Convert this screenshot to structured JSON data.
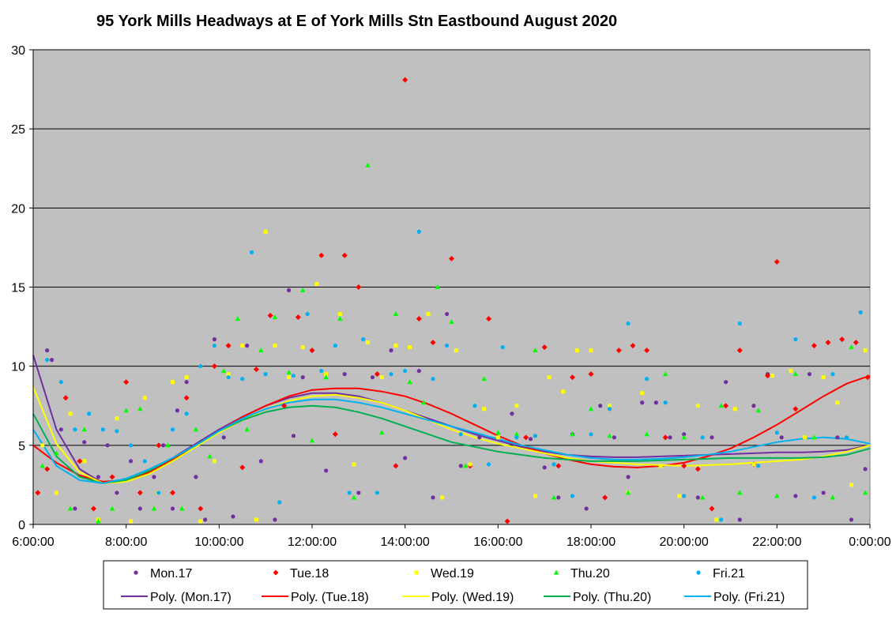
{
  "chart_data": {
    "type": "scatter",
    "title": "95 York Mills Headways  at E of York Mills Stn Eastbound  August  2020",
    "xlabel": "",
    "ylabel": "",
    "xlim": [
      6,
      24
    ],
    "ylim": [
      0,
      30
    ],
    "x_ticks": [
      "6:00:00",
      "8:00:00",
      "10:00:00",
      "12:00:00",
      "14:00:00",
      "16:00:00",
      "18:00:00",
      "20:00:00",
      "22:00:00",
      "0:00:00"
    ],
    "y_ticks": [
      "0",
      "5",
      "10",
      "15",
      "20",
      "25",
      "30"
    ],
    "grid": true,
    "legend_position": "bottom",
    "series": [
      {
        "name": "Mon.17",
        "color": "#7030A0",
        "marker": "circle",
        "x": [
          6.3,
          6.4,
          6.6,
          6.9,
          7.1,
          7.4,
          7.6,
          7.8,
          8.1,
          8.3,
          8.6,
          8.8,
          9.0,
          9.1,
          9.3,
          9.5,
          9.7,
          9.9,
          10.1,
          10.3,
          10.6,
          10.9,
          11.2,
          11.5,
          11.6,
          11.8,
          12.0,
          12.3,
          12.7,
          13.0,
          13.3,
          13.7,
          14.0,
          14.3,
          14.6,
          14.9,
          15.2,
          15.6,
          16.0,
          16.3,
          16.7,
          17.0,
          17.3,
          17.6,
          17.9,
          18.2,
          18.5,
          18.8,
          19.1,
          19.4,
          19.7,
          20.0,
          20.3,
          20.6,
          20.9,
          21.2,
          21.5,
          21.8,
          22.1,
          22.4,
          22.7,
          23.0,
          23.3,
          23.6,
          23.9
        ],
        "y": [
          11,
          10.4,
          6.0,
          1.0,
          5.2,
          3.0,
          5.0,
          2.0,
          4.0,
          1.0,
          3.0,
          5.0,
          1.0,
          7.2,
          9.0,
          3.0,
          0.3,
          11.7,
          5.5,
          0.5,
          11.3,
          4.0,
          0.3,
          14.8,
          5.6,
          9.3,
          11,
          3.4,
          9.5,
          2.0,
          9.3,
          11.0,
          4.2,
          9.7,
          1.7,
          13.3,
          3.7,
          5.5,
          5.5,
          7.0,
          5.4,
          3.6,
          1.7,
          5.7,
          1.0,
          7.5,
          5.5,
          3.0,
          7.7,
          7.7,
          5.5,
          5.7,
          1.7,
          5.5,
          9.0,
          0.3,
          7.5,
          9.5,
          5.5,
          1.8,
          9.5,
          2.0,
          5.5,
          0.3,
          3.5
        ]
      },
      {
        "name": "Tue.18",
        "color": "#FF0000",
        "marker": "diamond",
        "x": [
          6.1,
          6.3,
          6.7,
          7.0,
          7.3,
          7.7,
          8.0,
          8.3,
          8.7,
          9.0,
          9.3,
          9.6,
          9.9,
          10.2,
          10.5,
          10.8,
          11.1,
          11.4,
          11.7,
          12.0,
          12.2,
          12.5,
          12.7,
          13.0,
          13.4,
          13.8,
          14.0,
          14.3,
          14.6,
          15.0,
          15.4,
          15.8,
          16.2,
          16.6,
          17.0,
          17.3,
          17.6,
          18.0,
          18.3,
          18.6,
          18.9,
          19.2,
          19.6,
          20.0,
          20.3,
          20.6,
          20.9,
          21.2,
          21.5,
          21.8,
          22.0,
          22.4,
          22.8,
          23.1,
          23.4,
          23.7,
          23.95
        ],
        "y": [
          2.0,
          3.5,
          8.0,
          4.0,
          1.0,
          3.0,
          9.0,
          2.0,
          5.0,
          2.0,
          8.0,
          1.0,
          10.0,
          11.3,
          3.6,
          9.8,
          13.2,
          7.5,
          13.1,
          11.0,
          17.0,
          5.7,
          17.0,
          15.0,
          9.5,
          3.7,
          28.1,
          13.0,
          11.5,
          16.8,
          3.7,
          13.0,
          0.2,
          5.5,
          11.2,
          3.7,
          9.3,
          9.5,
          1.7,
          11.0,
          11.3,
          11.0,
          5.5,
          3.7,
          3.5,
          1.0,
          7.5,
          11.0,
          3.8,
          9.4,
          16.6,
          7.3,
          11.3,
          11.5,
          11.7,
          11.5,
          9.3
        ]
      },
      {
        "name": "Wed.19",
        "color": "#FFFF00",
        "marker": "square",
        "x": [
          6.2,
          6.5,
          6.8,
          7.1,
          7.4,
          7.8,
          8.1,
          8.4,
          8.7,
          9.0,
          9.3,
          9.6,
          9.9,
          10.2,
          10.5,
          10.8,
          11.0,
          11.2,
          11.5,
          11.8,
          12.1,
          12.3,
          12.6,
          12.9,
          13.2,
          13.5,
          13.8,
          14.1,
          14.5,
          14.8,
          15.1,
          15.4,
          15.7,
          16.0,
          16.4,
          16.8,
          17.1,
          17.4,
          17.7,
          18.0,
          18.4,
          18.8,
          19.1,
          19.5,
          19.9,
          20.3,
          20.7,
          21.1,
          21.5,
          21.9,
          22.3,
          22.6,
          23.0,
          23.3,
          23.6,
          23.9
        ],
        "y": [
          5.0,
          2.0,
          7.0,
          4.0,
          0.3,
          6.7,
          0.2,
          8.0,
          2.0,
          9.0,
          9.3,
          0.2,
          4.0,
          9.5,
          11.3,
          0.3,
          18.5,
          11.3,
          9.3,
          11.2,
          15.2,
          9.5,
          13.3,
          3.8,
          11.5,
          9.3,
          11.3,
          11.2,
          13.3,
          1.7,
          11.0,
          3.8,
          7.3,
          5.5,
          7.5,
          1.8,
          9.3,
          8.4,
          11.0,
          11.0,
          7.5,
          2.0,
          8.3,
          3.7,
          1.8,
          7.5,
          0.3,
          7.3,
          3.8,
          9.4,
          9.7,
          5.5,
          9.3,
          7.7,
          2.5,
          11.0
        ]
      },
      {
        "name": "Thu.20",
        "color": "#00FF00",
        "marker": "triangle",
        "x": [
          6.2,
          6.5,
          6.8,
          7.1,
          7.4,
          7.7,
          8.0,
          8.3,
          8.6,
          8.9,
          9.2,
          9.5,
          9.8,
          10.1,
          10.4,
          10.6,
          10.9,
          11.2,
          11.5,
          11.8,
          12.0,
          12.3,
          12.6,
          12.9,
          13.2,
          13.5,
          13.8,
          14.1,
          14.4,
          14.7,
          15.0,
          15.3,
          15.7,
          16.0,
          16.4,
          16.8,
          17.2,
          17.6,
          18.0,
          18.4,
          18.8,
          19.2,
          19.6,
          20.0,
          20.4,
          20.8,
          21.2,
          21.6,
          22.0,
          22.4,
          22.8,
          23.2,
          23.6,
          23.9
        ],
        "y": [
          3.7,
          4.5,
          1.0,
          6.0,
          0.2,
          1.0,
          7.2,
          7.3,
          1.0,
          5.0,
          1.0,
          6.0,
          4.3,
          9.7,
          13.0,
          6.0,
          11.0,
          13.1,
          9.6,
          14.8,
          5.3,
          9.3,
          13.0,
          1.7,
          22.7,
          5.8,
          13.3,
          9.0,
          7.7,
          15.0,
          12.8,
          3.7,
          9.2,
          5.8,
          5.7,
          11.0,
          1.7,
          5.7,
          7.3,
          5.6,
          2.0,
          5.7,
          9.5,
          5.5,
          1.7,
          7.5,
          2.0,
          7.2,
          1.8,
          9.5,
          5.5,
          1.7,
          11.2,
          2.0
        ]
      },
      {
        "name": "Fri.21",
        "color": "#00B0F0",
        "marker": "circle",
        "x": [
          6.3,
          6.6,
          6.9,
          7.2,
          7.5,
          7.8,
          8.1,
          8.4,
          8.7,
          9.0,
          9.3,
          9.6,
          9.9,
          10.2,
          10.5,
          10.7,
          11.0,
          11.3,
          11.6,
          11.9,
          12.2,
          12.5,
          12.8,
          13.1,
          13.4,
          13.7,
          14.0,
          14.3,
          14.6,
          14.9,
          15.2,
          15.5,
          15.8,
          16.1,
          16.4,
          16.8,
          17.2,
          17.6,
          18.0,
          18.4,
          18.8,
          19.2,
          19.6,
          20.0,
          20.4,
          20.8,
          21.2,
          21.6,
          22.0,
          22.4,
          22.8,
          23.2,
          23.5,
          23.8
        ],
        "y": [
          10.4,
          9.0,
          6.0,
          7.0,
          6.0,
          5.9,
          5.0,
          4.0,
          2.0,
          6.0,
          7.0,
          10.0,
          11.3,
          9.3,
          9.2,
          17.2,
          9.5,
          1.4,
          9.4,
          13.3,
          9.7,
          11.3,
          2.0,
          11.7,
          2.0,
          9.5,
          9.7,
          18.5,
          9.2,
          11.3,
          5.7,
          7.5,
          3.8,
          11.2,
          5.5,
          5.6,
          3.8,
          1.8,
          5.7,
          7.3,
          12.7,
          9.2,
          7.7,
          1.8,
          5.5,
          0.3,
          12.7,
          3.7,
          5.8,
          11.7,
          1.7,
          9.5,
          5.5,
          13.4
        ]
      }
    ],
    "trendlines": [
      {
        "name": "Poly. (Mon.17)",
        "color": "#7030A0",
        "degree": 6,
        "x": [
          6,
          6.5,
          7,
          7.5,
          8,
          8.5,
          9,
          9.5,
          10,
          10.5,
          11,
          11.5,
          12,
          12.5,
          13,
          13.5,
          14,
          14.5,
          15,
          15.5,
          16,
          16.5,
          17,
          17.5,
          18,
          18.5,
          19,
          19.5,
          20,
          20.5,
          21,
          21.5,
          22,
          22.5,
          23,
          23.5,
          24
        ],
        "y": [
          10.7,
          6.0,
          3.5,
          2.6,
          2.8,
          3.4,
          4.2,
          5.1,
          6.0,
          6.8,
          7.5,
          8.0,
          8.3,
          8.3,
          8.1,
          7.7,
          7.2,
          6.7,
          6.2,
          5.7,
          5.3,
          4.9,
          4.6,
          4.4,
          4.3,
          4.25,
          4.25,
          4.3,
          4.35,
          4.4,
          4.45,
          4.5,
          4.55,
          4.55,
          4.6,
          4.7,
          5.0
        ]
      },
      {
        "name": "Poly. (Tue.18)",
        "color": "#FF0000",
        "degree": 6,
        "x": [
          6,
          6.5,
          7,
          7.5,
          8,
          8.5,
          9,
          9.5,
          10,
          10.5,
          11,
          11.5,
          12,
          12.5,
          13,
          13.5,
          14,
          14.5,
          15,
          15.5,
          16,
          16.5,
          17,
          17.5,
          18,
          18.5,
          19,
          19.5,
          20,
          20.5,
          21,
          21.5,
          22,
          22.5,
          23,
          23.5,
          24
        ],
        "y": [
          5.0,
          3.9,
          3.1,
          2.7,
          2.8,
          3.3,
          4.1,
          5.0,
          5.9,
          6.8,
          7.5,
          8.1,
          8.5,
          8.6,
          8.6,
          8.4,
          8.1,
          7.6,
          7.0,
          6.3,
          5.6,
          5.0,
          4.5,
          4.1,
          3.8,
          3.65,
          3.6,
          3.7,
          3.9,
          4.3,
          4.8,
          5.5,
          6.3,
          7.2,
          8.1,
          8.9,
          9.4
        ]
      },
      {
        "name": "Poly. (Wed.19)",
        "color": "#FFFF00",
        "degree": 6,
        "x": [
          6,
          6.5,
          7,
          7.5,
          8,
          8.5,
          9,
          9.5,
          10,
          10.5,
          11,
          11.5,
          12,
          12.5,
          13,
          13.5,
          14,
          14.5,
          15,
          15.5,
          16,
          16.5,
          17,
          17.5,
          18,
          18.5,
          19,
          19.5,
          20,
          20.5,
          21,
          21.5,
          22,
          22.5,
          23,
          23.5,
          24
        ],
        "y": [
          8.7,
          5.1,
          3.3,
          2.6,
          2.7,
          3.2,
          4.0,
          4.9,
          5.8,
          6.6,
          7.3,
          7.8,
          8.1,
          8.2,
          8.0,
          7.7,
          7.2,
          6.6,
          6.0,
          5.5,
          5.1,
          4.8,
          4.5,
          4.2,
          4.0,
          3.9,
          3.8,
          3.75,
          3.7,
          3.75,
          3.8,
          3.9,
          4.0,
          4.1,
          4.3,
          4.6,
          5.0
        ]
      },
      {
        "name": "Poly. (Thu.20)",
        "color": "#00B050",
        "degree": 6,
        "x": [
          6,
          6.5,
          7,
          7.5,
          8,
          8.5,
          9,
          9.5,
          10,
          10.5,
          11,
          11.5,
          12,
          12.5,
          13,
          13.5,
          14,
          14.5,
          15,
          15.5,
          16,
          16.5,
          17,
          17.5,
          18,
          18.5,
          19,
          19.5,
          20,
          20.5,
          21,
          21.5,
          22,
          22.5,
          23,
          23.5,
          24
        ],
        "y": [
          7.0,
          4.3,
          3.0,
          2.6,
          2.8,
          3.4,
          4.2,
          5.0,
          5.9,
          6.6,
          7.1,
          7.4,
          7.5,
          7.4,
          7.1,
          6.7,
          6.2,
          5.7,
          5.2,
          4.9,
          4.6,
          4.4,
          4.2,
          4.1,
          4.0,
          4.0,
          4.0,
          4.05,
          4.1,
          4.15,
          4.2,
          4.2,
          4.2,
          4.2,
          4.25,
          4.4,
          4.8
        ]
      },
      {
        "name": "Poly. (Fri.21)",
        "color": "#00B0F0",
        "degree": 6,
        "x": [
          6,
          6.5,
          7,
          7.5,
          8,
          8.5,
          9,
          9.5,
          10,
          10.5,
          11,
          11.5,
          12,
          12.5,
          13,
          13.5,
          14,
          14.5,
          15,
          15.5,
          16,
          16.5,
          17,
          17.5,
          18,
          18.5,
          19,
          19.5,
          20,
          20.5,
          21,
          21.5,
          22,
          22.5,
          23,
          23.5,
          24
        ],
        "y": [
          6.0,
          3.7,
          2.8,
          2.6,
          2.9,
          3.5,
          4.2,
          5.0,
          5.9,
          6.7,
          7.3,
          7.7,
          7.9,
          7.9,
          7.7,
          7.4,
          7.0,
          6.6,
          6.2,
          5.8,
          5.4,
          5.0,
          4.7,
          4.4,
          4.2,
          4.1,
          4.1,
          4.15,
          4.25,
          4.4,
          4.6,
          4.9,
          5.2,
          5.4,
          5.5,
          5.4,
          5.1
        ]
      }
    ]
  }
}
